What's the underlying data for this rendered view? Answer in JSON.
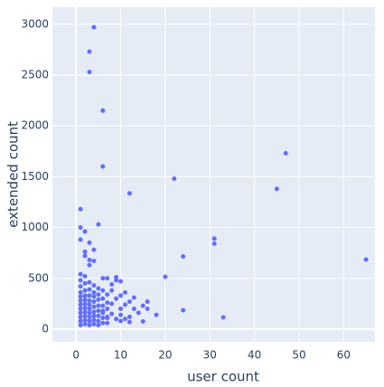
{
  "chart_data": {
    "type": "scatter",
    "x_label": "user count",
    "y_label": "extended count",
    "color": "#636efa",
    "grid": true,
    "xlim": [
      -5.3,
      67
    ],
    "ylim": [
      -125,
      3167
    ],
    "xticks": [
      0,
      10,
      20,
      30,
      40,
      50,
      60
    ],
    "yticks": [
      0,
      500,
      1000,
      1500,
      2000,
      2500,
      3000
    ],
    "x": [
      4,
      3,
      3,
      6,
      6,
      22,
      12,
      47,
      45,
      1,
      1,
      2,
      5,
      1,
      3,
      4,
      2,
      2,
      3,
      4,
      3,
      31,
      31,
      24,
      20,
      65,
      24,
      33,
      18,
      16,
      16,
      15,
      13,
      14,
      15,
      12,
      11,
      10,
      9,
      9,
      8,
      7,
      10,
      8,
      10,
      9,
      11,
      13,
      12,
      11,
      10,
      8,
      7,
      8,
      9,
      10,
      12,
      7,
      6,
      6,
      1,
      1,
      1,
      1,
      1,
      1,
      1,
      1,
      1,
      1,
      1,
      1,
      2,
      2,
      2,
      2,
      2,
      2,
      2,
      2,
      2,
      2,
      2,
      3,
      3,
      3,
      3,
      3,
      3,
      3,
      3,
      3,
      3,
      4,
      4,
      4,
      4,
      4,
      4,
      4,
      4,
      4,
      5,
      5,
      5,
      5,
      5,
      5,
      5,
      5,
      6,
      6,
      6,
      6,
      6,
      6,
      7,
      7,
      7,
      7
    ],
    "values": [
      2970,
      2730,
      2530,
      2150,
      1600,
      1480,
      1335,
      1730,
      1380,
      1180,
      1000,
      960,
      1030,
      880,
      850,
      780,
      760,
      720,
      680,
      670,
      630,
      890,
      840,
      715,
      515,
      685,
      185,
      115,
      140,
      200,
      270,
      230,
      200,
      160,
      75,
      70,
      100,
      140,
      480,
      510,
      440,
      500,
      470,
      380,
      330,
      300,
      360,
      310,
      270,
      240,
      200,
      250,
      200,
      150,
      100,
      80,
      120,
      120,
      180,
      500,
      40,
      80,
      120,
      160,
      200,
      240,
      280,
      320,
      360,
      420,
      480,
      540,
      50,
      90,
      130,
      170,
      210,
      250,
      290,
      330,
      380,
      450,
      520,
      40,
      80,
      120,
      160,
      200,
      240,
      280,
      330,
      390,
      460,
      50,
      90,
      130,
      170,
      220,
      270,
      320,
      360,
      430,
      40,
      80,
      130,
      180,
      230,
      290,
      340,
      400,
      60,
      110,
      160,
      230,
      300,
      380,
      60,
      110,
      260,
      340
    ]
  }
}
